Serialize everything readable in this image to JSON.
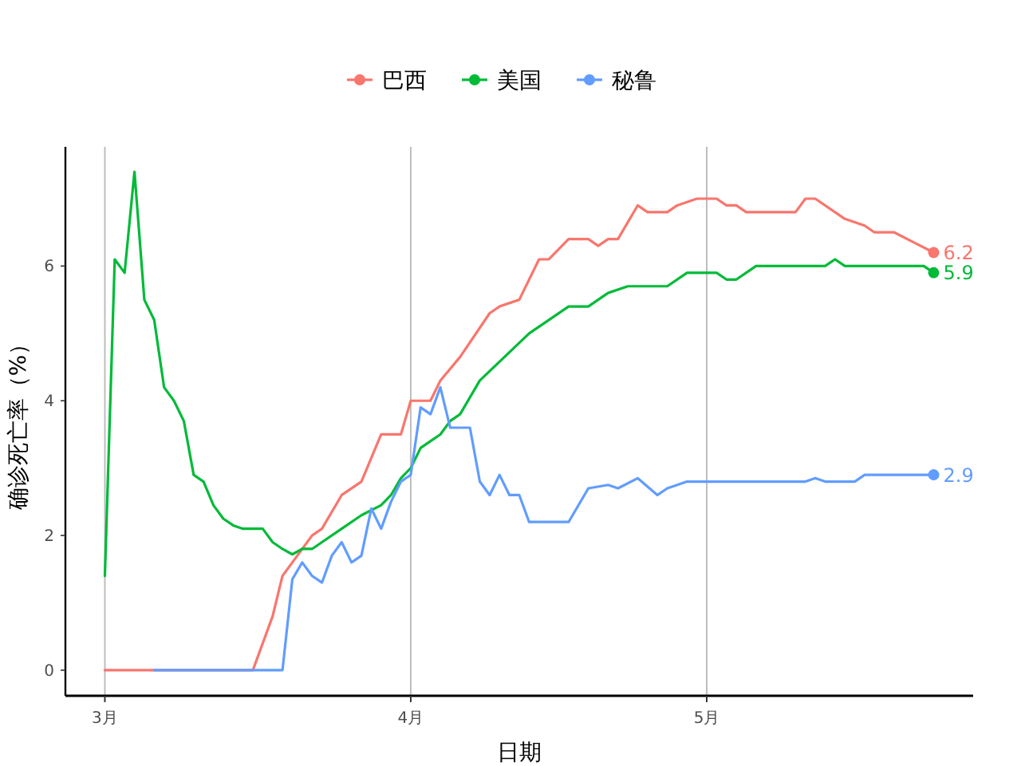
{
  "chart_data": {
    "type": "line",
    "xlabel": "日期",
    "ylabel": "确诊死亡率（%）",
    "xlim": [
      "--02-25",
      "--05-28"
    ],
    "xticks": [
      {
        "value": "--03-01",
        "label": "3月"
      },
      {
        "value": "--04-01",
        "label": "4月"
      },
      {
        "value": "--05-01",
        "label": "5月"
      }
    ],
    "ylim": [
      -0.38,
      7.77
    ],
    "yticks": [
      0,
      2,
      4,
      6
    ],
    "grid": "x",
    "legend": "top",
    "marker": "none",
    "line_style": "solid",
    "series": [
      {
        "name": "巴西",
        "color": "#f8766d",
        "x": [
          "--03-01",
          "--03-16",
          "--03-18",
          "--03-19",
          "--03-20",
          "--03-21",
          "--03-22",
          "--03-23",
          "--03-25",
          "--03-27",
          "--03-29",
          "--03-31",
          "--04-01",
          "--04-03",
          "--04-04",
          "--04-06",
          "--04-09",
          "--04-10",
          "--04-12",
          "--04-14",
          "--04-15",
          "--04-17",
          "--04-19",
          "--04-20",
          "--04-21",
          "--04-22",
          "--04-24",
          "--04-25",
          "--04-27",
          "--04-28",
          "--04-30",
          "--05-02",
          "--05-03",
          "--05-04",
          "--05-05",
          "--05-10",
          "--05-11",
          "--05-12",
          "--05-15",
          "--05-17",
          "--05-18",
          "--05-20",
          "--05-22",
          "--05-24"
        ],
        "values": [
          0,
          0,
          0.8,
          1.4,
          1.6,
          1.8,
          2.0,
          2.1,
          2.6,
          2.8,
          3.5,
          3.5,
          4.0,
          4.0,
          4.3,
          4.65,
          5.3,
          5.4,
          5.5,
          6.1,
          6.1,
          6.4,
          6.4,
          6.3,
          6.4,
          6.4,
          6.9,
          6.8,
          6.8,
          6.9,
          7.0,
          7.0,
          6.9,
          6.9,
          6.8,
          6.8,
          7.0,
          7.0,
          6.7,
          6.6,
          6.5,
          6.5,
          6.35,
          6.2
        ]
      },
      {
        "name": "美国",
        "color": "#00ba38",
        "x": [
          "--03-01",
          "--03-02",
          "--03-03",
          "--03-04",
          "--03-05",
          "--03-06",
          "--03-07",
          "--03-08",
          "--03-09",
          "--03-10",
          "--03-11",
          "--03-12",
          "--03-13",
          "--03-14",
          "--03-15",
          "--03-17",
          "--03-18",
          "--03-19",
          "--03-20",
          "--03-21",
          "--03-22",
          "--03-23",
          "--03-25",
          "--03-27",
          "--03-29",
          "--03-30",
          "--03-31",
          "--04-01",
          "--04-02",
          "--04-03",
          "--04-04",
          "--04-05",
          "--04-06",
          "--04-08",
          "--04-13",
          "--04-17",
          "--04-19",
          "--04-21",
          "--04-23",
          "--04-27",
          "--04-29",
          "--05-02",
          "--05-03",
          "--05-04",
          "--05-06",
          "--05-13",
          "--05-14",
          "--05-15",
          "--05-23",
          "--05-24"
        ],
        "values": [
          1.4,
          6.1,
          5.9,
          7.4,
          5.5,
          5.2,
          4.2,
          4.0,
          3.7,
          2.9,
          2.8,
          2.45,
          2.25,
          2.15,
          2.1,
          2.1,
          1.9,
          1.8,
          1.72,
          1.8,
          1.8,
          1.9,
          2.1,
          2.3,
          2.45,
          2.6,
          2.85,
          3.0,
          3.3,
          3.4,
          3.5,
          3.7,
          3.8,
          4.3,
          5.0,
          5.4,
          5.4,
          5.6,
          5.7,
          5.7,
          5.9,
          5.9,
          5.8,
          5.8,
          6.0,
          6.0,
          6.1,
          6.0,
          6.0,
          5.9
        ]
      },
      {
        "name": "秘鲁",
        "color": "#619cff",
        "x": [
          "--03-06",
          "--03-19",
          "--03-20",
          "--03-21",
          "--03-22",
          "--03-23",
          "--03-24",
          "--03-25",
          "--03-26",
          "--03-27",
          "--03-28",
          "--03-29",
          "--03-30",
          "--03-31",
          "--04-01",
          "--04-02",
          "--04-03",
          "--04-04",
          "--04-05",
          "--04-07",
          "--04-08",
          "--04-09",
          "--04-10",
          "--04-11",
          "--04-12",
          "--04-13",
          "--04-17",
          "--04-19",
          "--04-21",
          "--04-22",
          "--04-24",
          "--04-26",
          "--04-27",
          "--04-29",
          "--05-11",
          "--05-12",
          "--05-13",
          "--05-16",
          "--05-17",
          "--05-24"
        ],
        "values": [
          0,
          0,
          1.35,
          1.6,
          1.4,
          1.3,
          1.7,
          1.9,
          1.6,
          1.7,
          2.4,
          2.1,
          2.5,
          2.8,
          2.9,
          3.9,
          3.8,
          4.2,
          3.6,
          3.6,
          2.8,
          2.6,
          2.9,
          2.6,
          2.6,
          2.2,
          2.2,
          2.7,
          2.75,
          2.7,
          2.85,
          2.6,
          2.7,
          2.8,
          2.8,
          2.85,
          2.8,
          2.8,
          2.9,
          2.9
        ]
      }
    ],
    "annotations": [
      {
        "text": "6.2",
        "x": "--05-24",
        "y": 6.2
      },
      {
        "text": "5.9",
        "x": "--05-24",
        "y": 5.9
      },
      {
        "text": "2.9",
        "x": "--05-24",
        "y": 2.9
      }
    ]
  }
}
